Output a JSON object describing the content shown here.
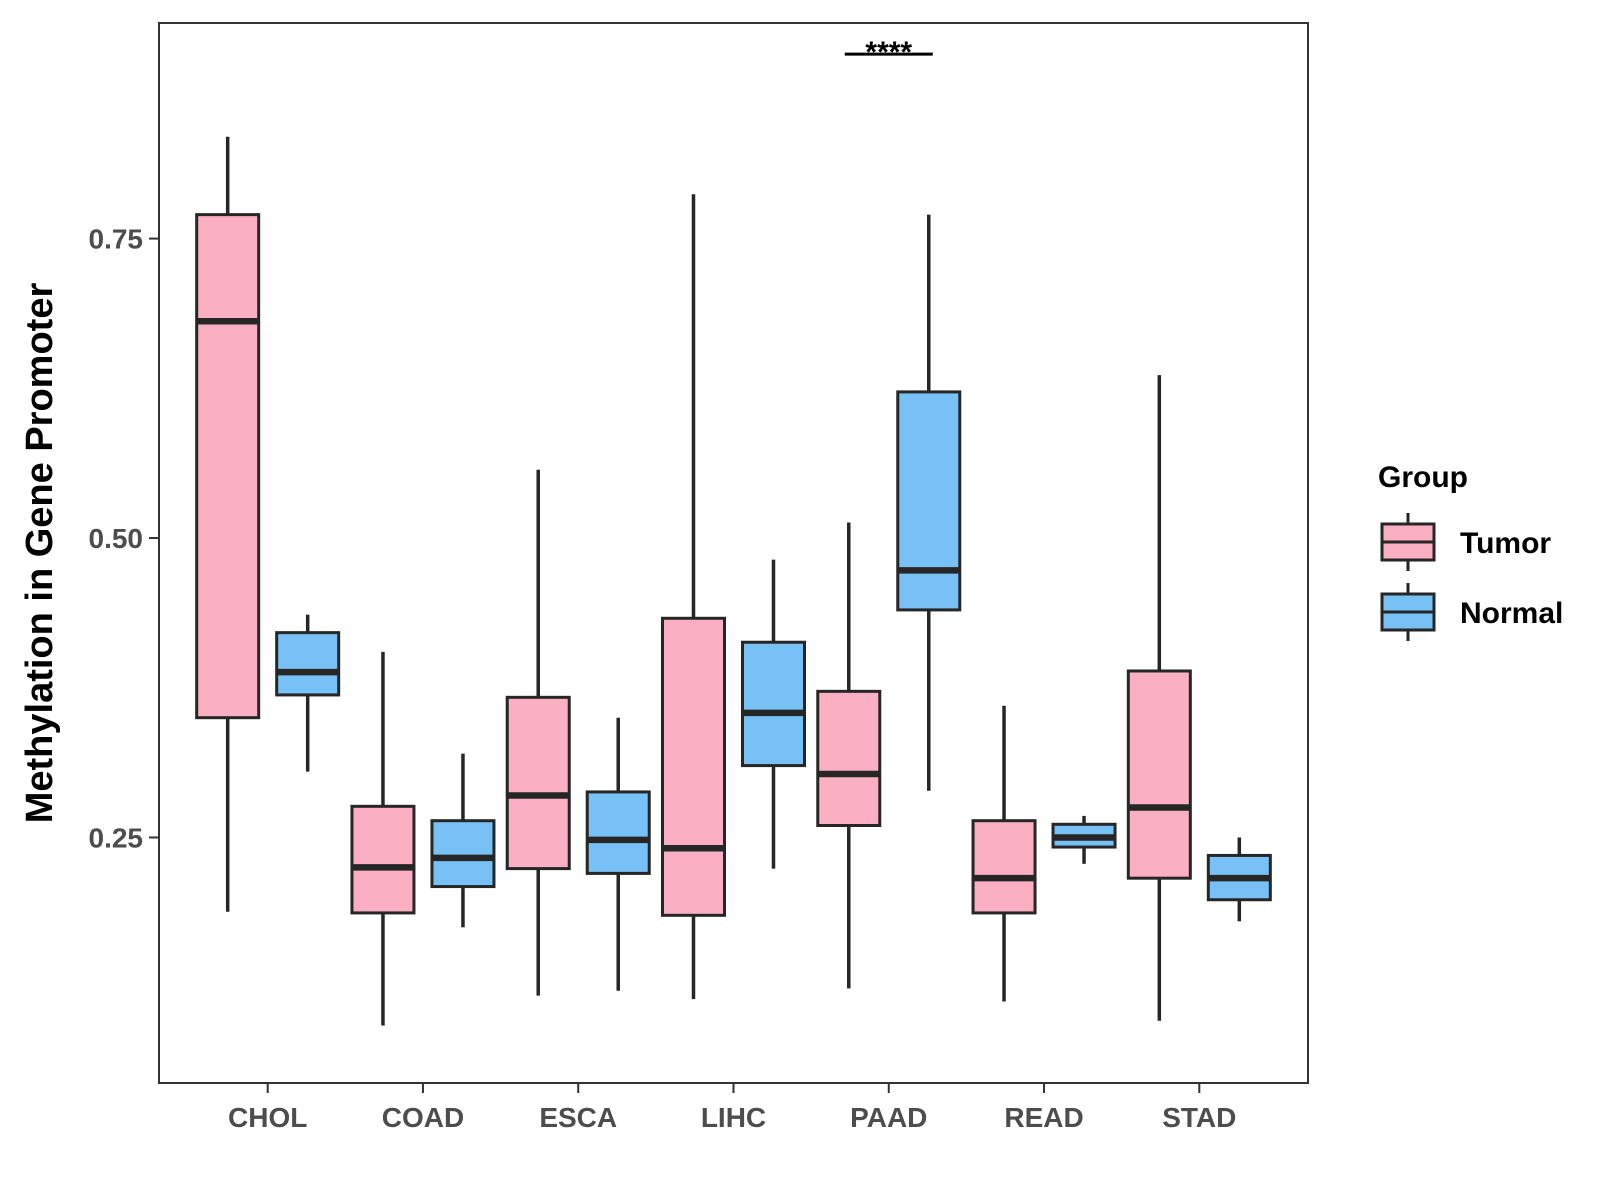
{
  "chart_data": {
    "type": "boxplot",
    "title": "",
    "xlabel": "",
    "ylabel": "Methylation in Gene Promoter",
    "ylim": [
      0.045,
      0.93
    ],
    "yticks": [
      0.25,
      0.5,
      0.75
    ],
    "ytick_labels": [
      "0.25",
      "0.50",
      "0.75"
    ],
    "grid": false,
    "categories": [
      "CHOL",
      "COAD",
      "ESCA",
      "LIHC",
      "PAAD",
      "READ",
      "STAD"
    ],
    "legend": {
      "title": "Group",
      "position": "right",
      "entries": [
        {
          "name": "Tumor",
          "color": "#fbafc2"
        },
        {
          "name": "Normal",
          "color": "#77c1f7"
        }
      ]
    },
    "series": [
      {
        "name": "Tumor",
        "color": "#fbafc2",
        "boxes": [
          {
            "min": 0.188,
            "q1": 0.35,
            "median": 0.681,
            "q3": 0.77,
            "max": 0.835
          },
          {
            "min": 0.093,
            "q1": 0.187,
            "median": 0.225,
            "q3": 0.276,
            "max": 0.405
          },
          {
            "min": 0.118,
            "q1": 0.224,
            "median": 0.285,
            "q3": 0.367,
            "max": 0.557
          },
          {
            "min": 0.115,
            "q1": 0.185,
            "median": 0.241,
            "q3": 0.433,
            "max": 0.787
          },
          {
            "min": 0.124,
            "q1": 0.26,
            "median": 0.303,
            "q3": 0.372,
            "max": 0.513
          },
          {
            "min": 0.113,
            "q1": 0.187,
            "median": 0.216,
            "q3": 0.264,
            "max": 0.36
          },
          {
            "min": 0.097,
            "q1": 0.216,
            "median": 0.275,
            "q3": 0.389,
            "max": 0.636
          }
        ]
      },
      {
        "name": "Normal",
        "color": "#77c1f7",
        "boxes": [
          {
            "min": 0.305,
            "q1": 0.369,
            "median": 0.388,
            "q3": 0.421,
            "max": 0.436
          },
          {
            "min": 0.175,
            "q1": 0.209,
            "median": 0.233,
            "q3": 0.264,
            "max": 0.32
          },
          {
            "min": 0.122,
            "q1": 0.22,
            "median": 0.248,
            "q3": 0.288,
            "max": 0.35
          },
          {
            "min": 0.224,
            "q1": 0.31,
            "median": 0.354,
            "q3": 0.413,
            "max": 0.482
          },
          {
            "min": 0.289,
            "q1": 0.44,
            "median": 0.473,
            "q3": 0.622,
            "max": 0.77
          },
          {
            "min": 0.228,
            "q1": 0.242,
            "median": 0.25,
            "q3": 0.261,
            "max": 0.268
          },
          {
            "min": 0.18,
            "q1": 0.198,
            "median": 0.216,
            "q3": 0.235,
            "max": 0.25
          }
        ]
      }
    ],
    "annotations": [
      {
        "category": "PAAD",
        "text": "****",
        "y": 0.904
      }
    ]
  }
}
